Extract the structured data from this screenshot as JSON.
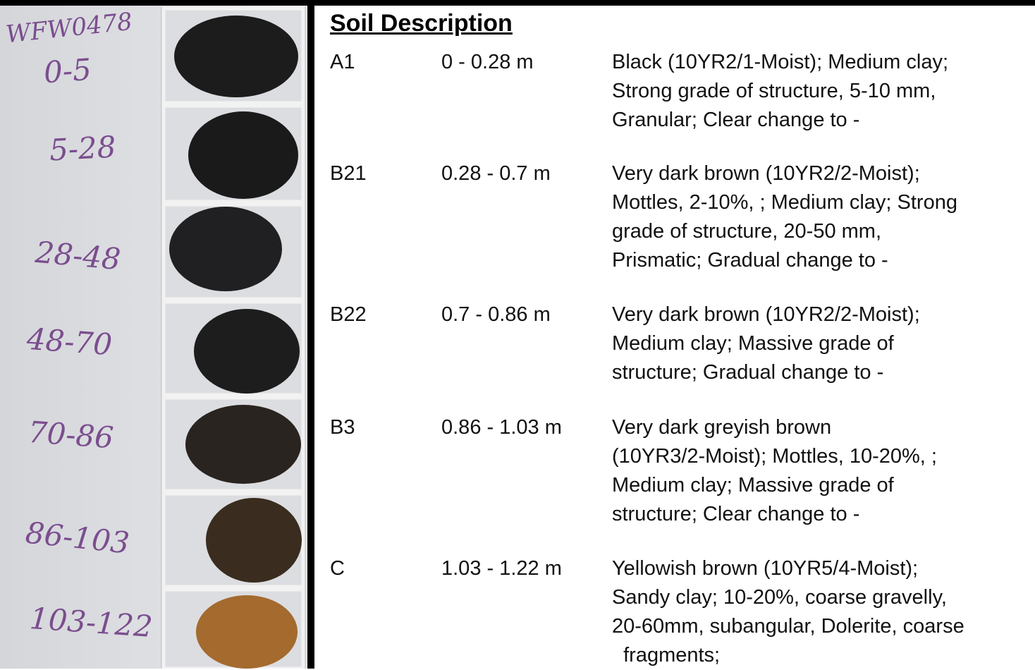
{
  "photo": {
    "labels": [
      "WFW0478",
      "0-5",
      "5-28",
      "28-48",
      "48-70",
      "70-86",
      "86-103",
      "103-122"
    ]
  },
  "description": {
    "title": "Soil Description",
    "rows": [
      {
        "horizon": "A1",
        "depth": "0 - 0.28 m",
        "lines": [
          "Black (10YR2/1-Moist); Medium clay;",
          "Strong grade of structure, 5-10 mm,",
          "Granular; Clear change to -"
        ]
      },
      {
        "horizon": "B21",
        "depth": "0.28 - 0.7 m",
        "lines": [
          "Very dark brown (10YR2/2-Moist);",
          "Mottles, 2-10%, ; Medium clay; Strong",
          "grade of structure, 20-50 mm,",
          "Prismatic; Gradual change to -"
        ]
      },
      {
        "horizon": "B22",
        "depth": "0.7 - 0.86 m",
        "lines": [
          "Very dark brown (10YR2/2-Moist);",
          "Medium clay; Massive grade of",
          "structure; Gradual change to -"
        ]
      },
      {
        "horizon": "B3",
        "depth": "0.86 - 1.03 m",
        "lines": [
          "Very dark greyish brown",
          "(10YR3/2-Moist); Mottles, 10-20%, ;",
          "Medium clay; Massive grade of",
          "structure; Clear change to -"
        ]
      },
      {
        "horizon": "C",
        "depth": "1.03 - 1.22 m",
        "lines": [
          "Yellowish brown (10YR5/4-Moist);",
          "Sandy clay; 10-20%, coarse gravelly,",
          "20-60mm, subangular, Dolerite, coarse",
          "  fragments;"
        ]
      }
    ]
  }
}
